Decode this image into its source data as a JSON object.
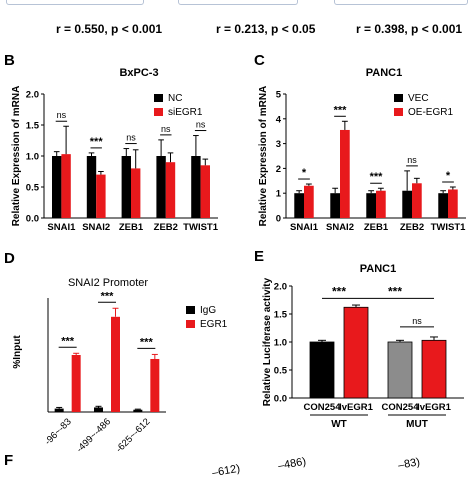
{
  "correlations": [
    "r = 0.550, p < 0.001",
    "r = 0.213, p < 0.05",
    "r = 0.398, p < 0.001"
  ],
  "panel_labels": [
    "B",
    "C",
    "D",
    "E",
    "F"
  ],
  "colors": {
    "black": "#000000",
    "red": "#e8191c",
    "gray": "#8c8c8c"
  },
  "panel_f_fragments": [
    "–612)",
    "–486)",
    "–83)"
  ],
  "chart_data": [
    {
      "id": "B",
      "type": "bar",
      "title": "BxPC-3",
      "ylabel": "Relative Expression of mRNA",
      "ylim": [
        0.0,
        2.0
      ],
      "yticks": [
        "0.0",
        "0.5",
        "1.0",
        "1.5",
        "2.0"
      ],
      "categories": [
        "SNAI1",
        "SNAI2",
        "ZEB1",
        "ZEB2",
        "TWIST1"
      ],
      "series": [
        {
          "name": "NC",
          "color": "#000000",
          "values": [
            1.0,
            1.0,
            1.0,
            1.0,
            1.0
          ],
          "errors": [
            0.07,
            0.05,
            0.12,
            0.26,
            0.33
          ]
        },
        {
          "name": "siEGR1",
          "color": "#e8191c",
          "values": [
            1.03,
            0.7,
            0.8,
            0.9,
            0.85
          ],
          "errors": [
            0.45,
            0.05,
            0.3,
            0.15,
            0.1
          ]
        }
      ],
      "significance": [
        "ns",
        "***",
        "ns",
        "ns",
        "ns"
      ],
      "legend_position": "top-right"
    },
    {
      "id": "C",
      "type": "bar",
      "title": "PANC1",
      "ylabel": "Relative Expression of mRNA",
      "ylim": [
        0,
        5
      ],
      "yticks": [
        "0",
        "1",
        "2",
        "3",
        "4",
        "5"
      ],
      "categories": [
        "SNAI1",
        "SNAI2",
        "ZEB1",
        "ZEB2",
        "TWIST1"
      ],
      "series": [
        {
          "name": "VEC",
          "color": "#000000",
          "values": [
            1.0,
            1.0,
            1.0,
            1.1,
            1.0
          ],
          "errors": [
            0.1,
            0.2,
            0.1,
            0.8,
            0.1
          ]
        },
        {
          "name": "OE-EGR1",
          "color": "#e8191c",
          "values": [
            1.3,
            3.55,
            1.1,
            1.4,
            1.15
          ],
          "errors": [
            0.07,
            0.35,
            0.1,
            0.2,
            0.1
          ]
        }
      ],
      "significance": [
        "*",
        "***",
        "***",
        "ns",
        "*"
      ],
      "legend_position": "top-right"
    },
    {
      "id": "D",
      "type": "bar",
      "title": "SNAI2 Promoter",
      "ylabel": "%Input",
      "ylim": [
        0,
        2.0
      ],
      "categories": [
        "-96~-83",
        "-499~-486",
        "-625~-612"
      ],
      "series": [
        {
          "name": "IgG",
          "color": "#000000",
          "values": [
            0.06,
            0.08,
            0.04
          ],
          "errors": [
            0.02,
            0.02,
            0.01
          ]
        },
        {
          "name": "EGR1",
          "color": "#e8191c",
          "values": [
            1.0,
            1.67,
            0.93
          ],
          "errors": [
            0.03,
            0.15,
            0.08
          ]
        }
      ],
      "significance": [
        "***",
        "***",
        "***"
      ],
      "legend_position": "top-right"
    },
    {
      "id": "E",
      "type": "bar",
      "title": "PANC1",
      "ylabel": "Relative Luciferase activity",
      "ylim": [
        0.0,
        2.0
      ],
      "yticks": [
        "0.0",
        "0.5",
        "1.0",
        "1.5",
        "2.0"
      ],
      "categories": [
        "CON254",
        "lvEGR1",
        "CON254",
        "lvEGR1"
      ],
      "groups": [
        {
          "label": "WT",
          "span": [
            0,
            1
          ]
        },
        {
          "label": "MUT",
          "span": [
            2,
            3
          ]
        }
      ],
      "values": [
        1.0,
        1.62,
        1.0,
        1.03
      ],
      "errors": [
        0.03,
        0.04,
        0.03,
        0.06
      ],
      "colors": [
        "#000000",
        "#e8191c",
        "#8c8c8c",
        "#e8191c"
      ],
      "comparisons": [
        {
          "from": 0,
          "to": 1,
          "label": "***"
        },
        {
          "from": 1,
          "to": 3,
          "label": "***"
        },
        {
          "from": 2,
          "to": 3,
          "label": "ns"
        }
      ]
    }
  ]
}
